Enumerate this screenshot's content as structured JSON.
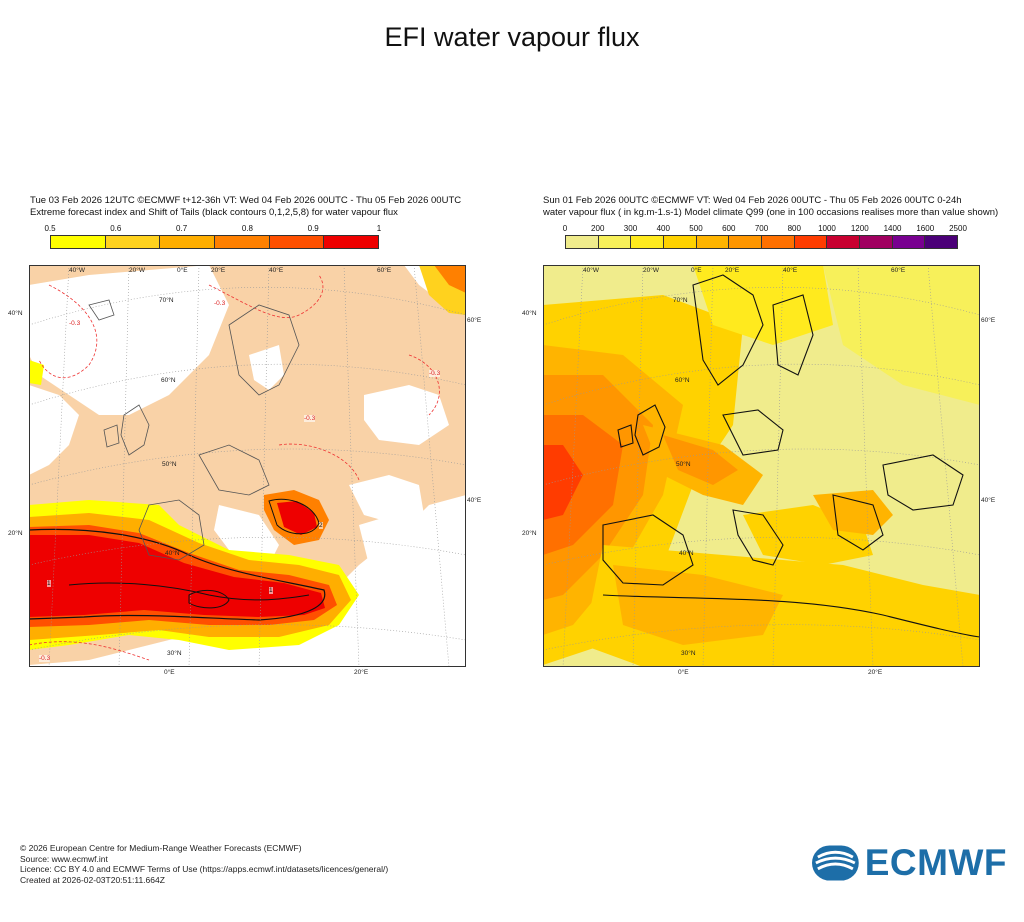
{
  "title": "EFI water vapour flux",
  "left_panel": {
    "header_line1": "Tue 03 Feb 2026 12UTC ©ECMWF t+12-36h  VT: Wed 04 Feb 2026 00UTC - Thu 05 Feb 2026 00UTC",
    "header_line2": "Extreme forecast index and Shift of Tails (black contours 0,1,2,5,8) for water vapour flux",
    "colorbar": {
      "ticks": [
        "0.5",
        "0.6",
        "0.7",
        "0.8",
        "0.9",
        "1"
      ],
      "colors": [
        "#ffff00",
        "#ffd21e",
        "#ffae00",
        "#ff8000",
        "#ff5000",
        "#ee0000"
      ]
    },
    "coords": {
      "top": [
        "40°W",
        "20°W",
        "0°E",
        "20°E",
        "40°E",
        "60°E"
      ],
      "bottom": [
        "0°E",
        "20°E"
      ],
      "left": [
        "40°N",
        "20°N"
      ],
      "right": [
        "60°E",
        "40°E"
      ],
      "inner": [
        "70°N",
        "60°N",
        "50°N",
        "40°N",
        "30°N"
      ]
    },
    "contour_labels": [
      "-0.3",
      "-0.3",
      "-0.3",
      "-0.3",
      "-0.3",
      "1",
      "1",
      "2"
    ]
  },
  "right_panel": {
    "header_line1": "Sun 01 Feb 2026 00UTC ©ECMWF VT: Wed 04 Feb 2026 00UTC - Thu 05 Feb 2026 00UTC   0-24h",
    "header_line2": "water vapour flux ( in kg.m-1.s-1)   Model climate Q99 (one in 100 occasions realises more than value shown)",
    "colorbar": {
      "ticks": [
        "0",
        "200",
        "300",
        "400",
        "500",
        "600",
        "700",
        "800",
        "1000",
        "1200",
        "1400",
        "1600",
        "2500"
      ],
      "colors": [
        "#f0ec8c",
        "#f7f05a",
        "#ffea1e",
        "#ffd200",
        "#ffb400",
        "#ff9600",
        "#ff7000",
        "#ff3c00",
        "#c80030",
        "#a00060",
        "#780090",
        "#4b0078"
      ]
    },
    "coords": {
      "top": [
        "40°W",
        "20°W",
        "0°E",
        "20°E",
        "40°E",
        "60°E"
      ],
      "bottom": [
        "0°E",
        "20°E"
      ],
      "left": [
        "40°N",
        "20°N"
      ],
      "right": [
        "60°E",
        "40°E"
      ],
      "inner": [
        "70°N",
        "60°N",
        "50°N",
        "40°N",
        "30°N"
      ]
    }
  },
  "footer": {
    "line1": "© 2026 European Centre for Medium-Range Weather Forecasts (ECMWF)",
    "line2": "Source: www.ecmwf.int",
    "line3": "Licence: CC BY 4.0 and ECMWF Terms of Use (https://apps.ecmwf.int/datasets/licences/general/)",
    "line4": "Created at 2026-02-03T20:51:11.664Z"
  },
  "logo": {
    "text": "ECMWF",
    "color": "#1d6ea8"
  }
}
